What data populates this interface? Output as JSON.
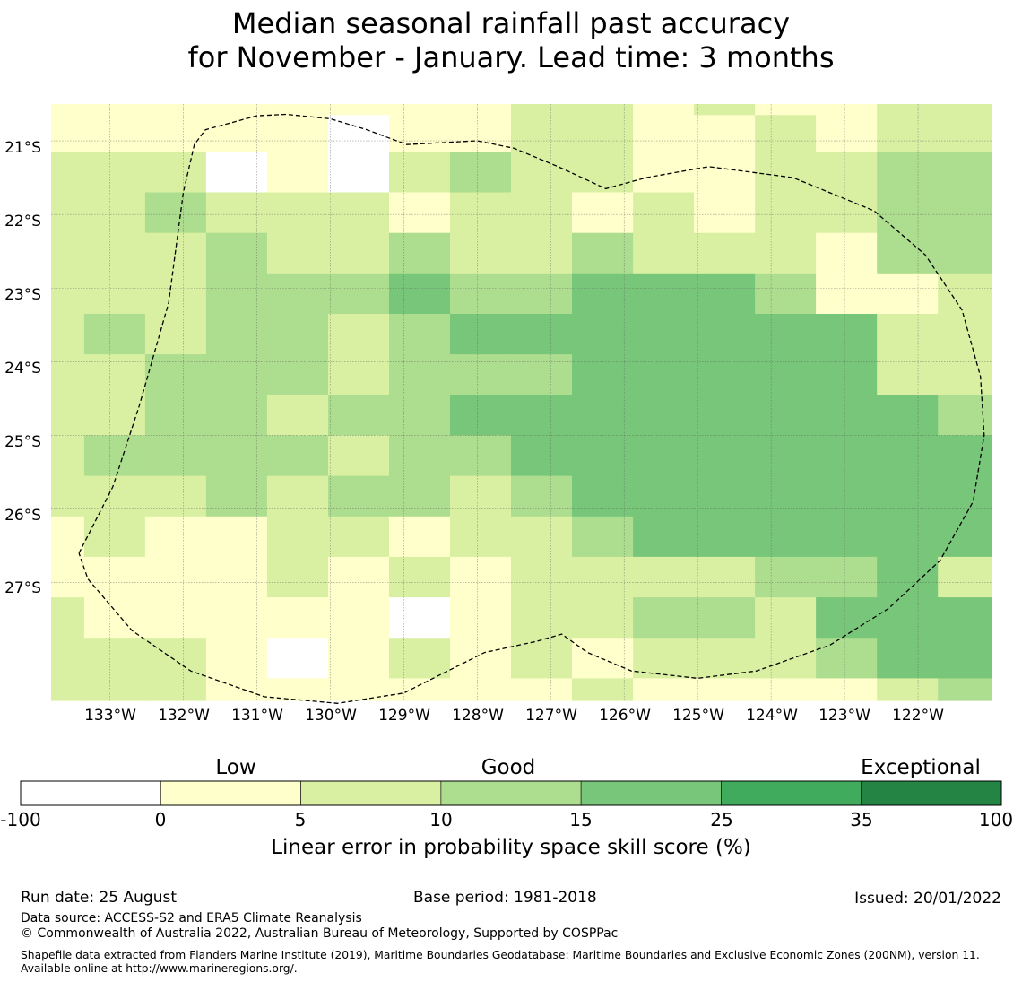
{
  "title": {
    "line1": "Median seasonal rainfall past accuracy",
    "line2": "for November - January. Lead time: 3 months"
  },
  "map": {
    "lat_labels": [
      "21°S",
      "22°S",
      "23°S",
      "24°S",
      "25°S",
      "26°S",
      "27°S"
    ],
    "lon_labels": [
      "133°W",
      "132°W",
      "131°W",
      "130°W",
      "129°W",
      "128°W",
      "127°W",
      "126°W",
      "125°W",
      "124°W",
      "123°W",
      "122°W"
    ],
    "extent": {
      "lon_west": -133.8,
      "lon_east": -121.0,
      "lat_north": -20.5,
      "lat_south": -28.6
    },
    "grid": {
      "lon_edges": [
        -133.8,
        -133.35,
        -132.52,
        -131.69,
        -130.86,
        -130.03,
        -129.2,
        -128.37,
        -127.54,
        -126.71,
        -125.88,
        -125.05,
        -124.22,
        -123.39,
        -122.56,
        -121.73,
        -121.0
      ],
      "lat_edges": [
        -20.5,
        -20.65,
        -21.15,
        -21.7,
        -22.25,
        -22.8,
        -23.35,
        -23.9,
        -24.45,
        -25.0,
        -25.55,
        -26.1,
        -26.65,
        -27.2,
        -27.75,
        -28.3,
        -28.6
      ],
      "categories": [
        [
          1,
          1,
          1,
          1,
          1,
          1,
          1,
          1,
          2,
          2,
          1,
          2,
          1,
          1,
          2,
          2
        ],
        [
          1,
          1,
          1,
          1,
          1,
          0,
          1,
          1,
          2,
          2,
          1,
          1,
          2,
          1,
          2,
          2
        ],
        [
          2,
          2,
          2,
          0,
          1,
          0,
          2,
          3,
          2,
          2,
          1,
          1,
          2,
          2,
          3,
          3
        ],
        [
          2,
          2,
          3,
          2,
          2,
          2,
          1,
          2,
          2,
          1,
          2,
          1,
          2,
          2,
          3,
          3
        ],
        [
          2,
          2,
          2,
          3,
          2,
          2,
          3,
          2,
          2,
          3,
          2,
          2,
          2,
          1,
          3,
          3
        ],
        [
          2,
          2,
          2,
          3,
          3,
          3,
          4,
          3,
          3,
          4,
          4,
          4,
          3,
          1,
          1,
          2
        ],
        [
          2,
          3,
          2,
          3,
          3,
          2,
          3,
          4,
          4,
          4,
          4,
          4,
          4,
          4,
          2,
          2
        ],
        [
          2,
          2,
          3,
          3,
          3,
          2,
          3,
          3,
          3,
          4,
          4,
          4,
          4,
          4,
          2,
          2
        ],
        [
          2,
          2,
          3,
          3,
          2,
          3,
          3,
          4,
          4,
          4,
          4,
          4,
          4,
          4,
          4,
          3
        ],
        [
          2,
          3,
          3,
          3,
          3,
          2,
          3,
          3,
          4,
          4,
          4,
          4,
          4,
          4,
          4,
          4
        ],
        [
          2,
          2,
          2,
          3,
          2,
          3,
          3,
          2,
          3,
          4,
          4,
          4,
          4,
          4,
          4,
          4
        ],
        [
          1,
          2,
          1,
          1,
          2,
          2,
          1,
          2,
          2,
          3,
          4,
          4,
          4,
          4,
          4,
          4
        ],
        [
          1,
          1,
          1,
          1,
          2,
          1,
          2,
          1,
          2,
          2,
          2,
          2,
          3,
          3,
          4,
          2
        ],
        [
          2,
          1,
          1,
          1,
          1,
          1,
          0,
          1,
          2,
          2,
          3,
          3,
          2,
          4,
          4,
          4
        ],
        [
          2,
          2,
          2,
          1,
          0,
          1,
          2,
          1,
          2,
          1,
          2,
          2,
          2,
          3,
          4,
          4
        ],
        [
          2,
          2,
          2,
          1,
          1,
          1,
          1,
          1,
          1,
          2,
          1,
          1,
          1,
          1,
          2,
          3
        ]
      ]
    },
    "boundary": [
      [
        -133.42,
        -26.6
      ],
      [
        -132.96,
        -25.7
      ],
      [
        -132.6,
        -24.6
      ],
      [
        -132.2,
        -23.2
      ],
      [
        -132.0,
        -21.7
      ],
      [
        -131.85,
        -21.05
      ],
      [
        -131.7,
        -20.85
      ],
      [
        -131.0,
        -20.66
      ],
      [
        -130.6,
        -20.64
      ],
      [
        -130.0,
        -20.7
      ],
      [
        -129.5,
        -20.85
      ],
      [
        -128.96,
        -21.05
      ],
      [
        -128.0,
        -21.0
      ],
      [
        -127.5,
        -21.1
      ],
      [
        -126.9,
        -21.35
      ],
      [
        -126.25,
        -21.65
      ],
      [
        -125.7,
        -21.5
      ],
      [
        -124.85,
        -21.35
      ],
      [
        -123.7,
        -21.5
      ],
      [
        -122.6,
        -21.95
      ],
      [
        -121.9,
        -22.55
      ],
      [
        -121.4,
        -23.3
      ],
      [
        -121.15,
        -24.2
      ],
      [
        -121.1,
        -25.0
      ],
      [
        -121.25,
        -25.9
      ],
      [
        -121.7,
        -26.7
      ],
      [
        -122.4,
        -27.35
      ],
      [
        -123.2,
        -27.85
      ],
      [
        -124.2,
        -28.2
      ],
      [
        -125.0,
        -28.3
      ],
      [
        -125.9,
        -28.2
      ],
      [
        -126.5,
        -27.95
      ],
      [
        -126.85,
        -27.7
      ],
      [
        -127.2,
        -27.8
      ],
      [
        -127.9,
        -27.95
      ],
      [
        -128.4,
        -28.2
      ],
      [
        -129.0,
        -28.5
      ],
      [
        -129.9,
        -28.64
      ],
      [
        -130.9,
        -28.55
      ],
      [
        -131.9,
        -28.2
      ],
      [
        -132.7,
        -27.65
      ],
      [
        -133.3,
        -26.95
      ],
      [
        -133.42,
        -26.6
      ]
    ]
  },
  "colorbar": {
    "category_labels": [
      "Low",
      "Good",
      "Exceptional"
    ],
    "ticks": [
      "-100",
      "0",
      "5",
      "10",
      "15",
      "25",
      "35",
      "100"
    ],
    "colors": [
      "#ffffff",
      "#ffffcc",
      "#d9f0a3",
      "#addd8e",
      "#78c679",
      "#41ab5d",
      "#238443"
    ],
    "label": "Linear error in probability space skill score (%)"
  },
  "footer": {
    "run_date": "Run date: 25 August",
    "base_period": "Base period: 1981-2018",
    "issued": "Issued: 20/01/2022",
    "data_source": "Data source: ACCESS-S2 and ERA5 Climate Reanalysis",
    "copyright": "© Commonwealth of Australia 2022, Australian Bureau of Meteorology, Supported by COSPPac",
    "shapefile_note": "Shapefile data extracted from Flanders Marine Institute (2019), Maritime Boundaries Geodatabase: Maritime Boundaries and Exclusive Economic Zones (200NM), version 11. Available online at http://www.marineregions.org/."
  }
}
